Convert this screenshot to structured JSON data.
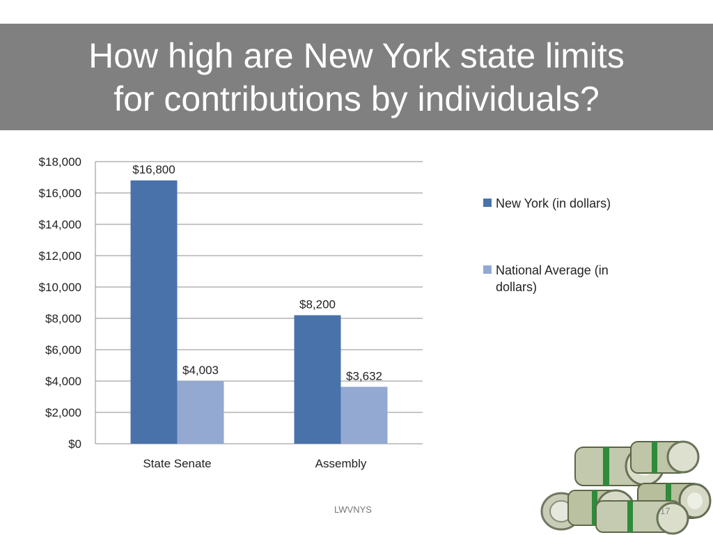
{
  "slide": {
    "title_line1": "How high are New York state limits",
    "title_line2": "for contributions by individuals?",
    "footer": "LWVNYS",
    "page_number": "17",
    "image_icon": "money-rolls-icon"
  },
  "colors": {
    "title_band": "#808080",
    "series_ny": "#4A72AA",
    "series_nat": "#93A9D2",
    "grid": "#8c8c8c"
  },
  "chart_data": {
    "type": "bar",
    "title": "",
    "xlabel": "",
    "ylabel": "",
    "categories": [
      "State Senate",
      "Assembly"
    ],
    "series": [
      {
        "name": "New York (in dollars)",
        "values": [
          16800,
          8200
        ],
        "labels": [
          "$16,800",
          "$8,200"
        ]
      },
      {
        "name": "National Average (in dollars)",
        "values": [
          4003,
          3632
        ],
        "labels": [
          "$4,003",
          "$3,632"
        ]
      }
    ],
    "ylim": [
      0,
      18000
    ],
    "yticks": [
      0,
      2000,
      4000,
      6000,
      8000,
      10000,
      12000,
      14000,
      16000,
      18000
    ],
    "ytick_labels": [
      "$0",
      "$2,000",
      "$4,000",
      "$6,000",
      "$8,000",
      "$10,000",
      "$12,000",
      "$14,000",
      "$16,000",
      "$18,000"
    ],
    "grid": true,
    "legend_position": "right"
  }
}
